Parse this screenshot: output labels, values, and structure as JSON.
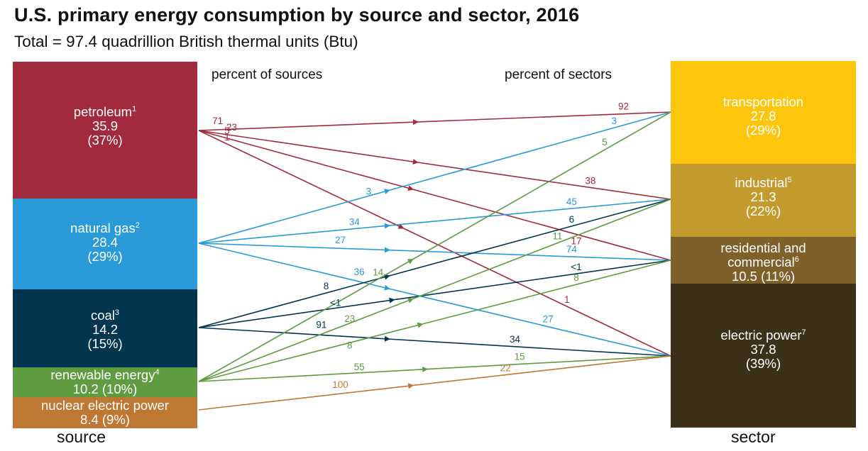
{
  "header": {
    "title": "U.S. primary energy consumption by source and sector, 2016",
    "subtitle": "Total = 97.4 quadrillion British thermal units (Btu)",
    "left_column_heading": "percent of sources",
    "right_column_heading": "percent of sectors"
  },
  "footer": {
    "source_label": "source",
    "sector_label": "sector"
  },
  "colors": {
    "petroleum": "#a12b3d",
    "natural_gas": "#2a9ad8",
    "coal": "#023550",
    "renewable": "#5f9b41",
    "nuclear": "#bf7834",
    "transportation": "#fdc60c",
    "industrial": "#c39a2e",
    "residential": "#7e612a",
    "electric": "#3c3118"
  },
  "sources": {
    "petroleum": {
      "name": "petroleum",
      "note": "1",
      "value": "35.9",
      "pct": "(37%)"
    },
    "natural_gas": {
      "name": "natural gas",
      "note": "2",
      "value": "28.4",
      "pct": "(29%)"
    },
    "coal": {
      "name": "coal",
      "note": "3",
      "value": "14.2",
      "pct": "(15%)"
    },
    "renewable": {
      "name": "renewable energy",
      "note": "4",
      "value_pct": "10.2 (10%)"
    },
    "nuclear": {
      "name": "nuclear electric power",
      "value_pct": "8.4 (9%)"
    }
  },
  "sectors": {
    "transportation": {
      "name": "transportation",
      "value": "27.8",
      "pct": "(29%)"
    },
    "industrial": {
      "name": "industrial",
      "note": "5",
      "value": "21.3",
      "pct": "(22%)"
    },
    "residential": {
      "line1": "residential and",
      "line2": "commercial",
      "note": "6",
      "value_pct": "10.5 (11%)"
    },
    "electric": {
      "name": "electric power",
      "note": "7",
      "value": "37.8",
      "pct": "(39%)"
    }
  },
  "flows": [
    {
      "source": "petroleum",
      "sector": "transportation",
      "source_pct": "71",
      "sector_pct": "92"
    },
    {
      "source": "petroleum",
      "sector": "industrial",
      "source_pct": "23",
      "sector_pct": "38"
    },
    {
      "source": "petroleum",
      "sector": "residential",
      "source_pct": "5",
      "sector_pct": "17"
    },
    {
      "source": "petroleum",
      "sector": "electric",
      "source_pct": "1",
      "sector_pct": "1"
    },
    {
      "source": "natural_gas",
      "sector": "transportation",
      "source_pct": "3",
      "sector_pct": "3"
    },
    {
      "source": "natural_gas",
      "sector": "industrial",
      "source_pct": "34",
      "sector_pct": "45"
    },
    {
      "source": "natural_gas",
      "sector": "residential",
      "source_pct": "27",
      "sector_pct": "74"
    },
    {
      "source": "natural_gas",
      "sector": "electric",
      "source_pct": "36",
      "sector_pct": "27"
    },
    {
      "source": "coal",
      "sector": "industrial",
      "source_pct": "8",
      "sector_pct": "6"
    },
    {
      "source": "coal",
      "sector": "residential",
      "source_pct": "<1",
      "sector_pct": "<1"
    },
    {
      "source": "coal",
      "sector": "electric",
      "source_pct": "91",
      "sector_pct": "34"
    },
    {
      "source": "renewable",
      "sector": "transportation",
      "source_pct": "14",
      "sector_pct": "5"
    },
    {
      "source": "renewable",
      "sector": "industrial",
      "source_pct": "23",
      "sector_pct": "11"
    },
    {
      "source": "renewable",
      "sector": "residential",
      "source_pct": "8",
      "sector_pct": "8"
    },
    {
      "source": "renewable",
      "sector": "electric",
      "source_pct": "55",
      "sector_pct": "15"
    },
    {
      "source": "nuclear",
      "sector": "electric",
      "source_pct": "100",
      "sector_pct": "22"
    }
  ]
}
